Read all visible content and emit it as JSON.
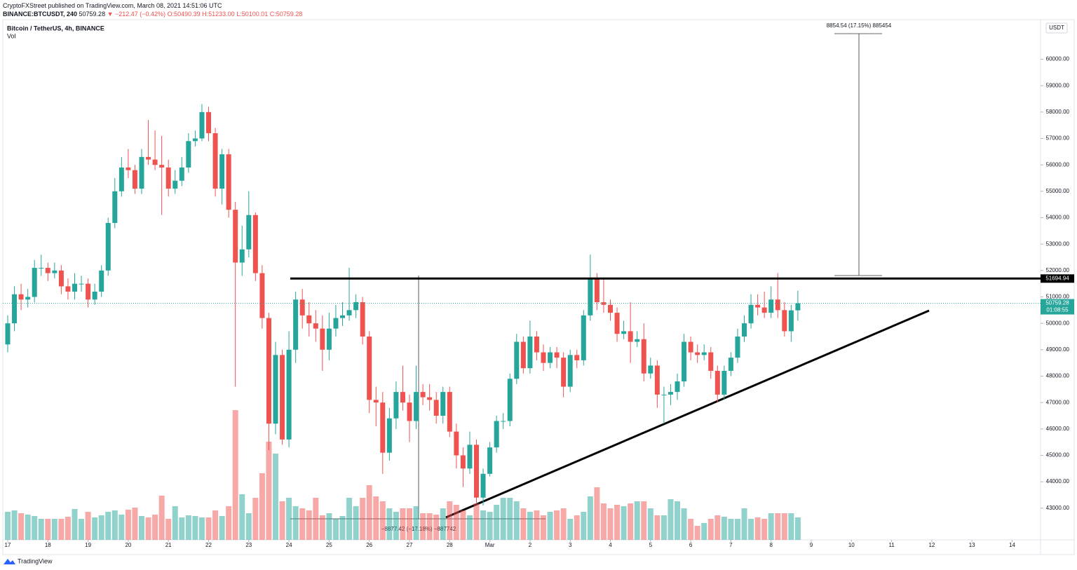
{
  "header": {
    "publisher": "CryptoFXStreet published on TradingView.com, March 08, 2021 14:51:06 UTC",
    "symbol": "BINANCE:BTCUSDT, 240",
    "last": "50759.28",
    "change": "▼ −212.47 (−0.42%)",
    "o": "O:50490.39",
    "h": "H:51233.00",
    "l": "L:50100.01",
    "c": "C:50759.28"
  },
  "footer": "TradingView",
  "chart_data": {
    "type": "candlestick",
    "title": "Bitcoin / TetherUS, 4h, BINANCE",
    "volume_label": "Vol",
    "currency": "USDT",
    "up_color": "#26a69a",
    "down_color": "#ef5350",
    "ylim": [
      41800,
      61500
    ],
    "yticks": [
      {
        "value": 43000,
        "label": "43000.00"
      },
      {
        "value": 44000,
        "label": "44000.00"
      },
      {
        "value": 45000,
        "label": "45000.00"
      },
      {
        "value": 46000,
        "label": "46000.00"
      },
      {
        "value": 47000,
        "label": "47000.00"
      },
      {
        "value": 48000,
        "label": "48000.00"
      },
      {
        "value": 49000,
        "label": "49000.00"
      },
      {
        "value": 50000,
        "label": "50000.00"
      },
      {
        "value": 51000,
        "label": "51000.00"
      },
      {
        "value": 52000,
        "label": "52000.00"
      },
      {
        "value": 53000,
        "label": "53000.00"
      },
      {
        "value": 54000,
        "label": "54000.00"
      },
      {
        "value": 55000,
        "label": "55000.00"
      },
      {
        "value": 56000,
        "label": "56000.00"
      },
      {
        "value": 57000,
        "label": "57000.00"
      },
      {
        "value": 58000,
        "label": "58000.00"
      },
      {
        "value": 59000,
        "label": "59000.00"
      },
      {
        "value": 60000,
        "label": "60000.00"
      }
    ],
    "xtick_labels": [
      "17",
      "18",
      "19",
      "20",
      "21",
      "22",
      "23",
      "24",
      "25",
      "26",
      "27",
      "28",
      "Mar",
      "2",
      "3",
      "4",
      "5",
      "6",
      "7",
      "8",
      "9",
      "10",
      "11",
      "12",
      "13",
      "14"
    ],
    "resistance": 51694.94,
    "last_price": 50759.28,
    "countdown": "01:08:55",
    "annotations": [
      "8854.54 (17.15%) 885454",
      "−8877.42 (−17.18%) −887742"
    ],
    "candles": [
      [
        49200,
        50300,
        48900,
        50000
      ],
      [
        50000,
        51400,
        49700,
        51100
      ],
      [
        51100,
        51500,
        50500,
        50900
      ],
      [
        50900,
        51300,
        50600,
        51000
      ],
      [
        51000,
        52400,
        50800,
        52100
      ],
      [
        52100,
        52600,
        51800,
        52100
      ],
      [
        52100,
        52300,
        51600,
        51900
      ],
      [
        51900,
        52300,
        51700,
        52000
      ],
      [
        52000,
        52200,
        51100,
        51400
      ],
      [
        51400,
        51700,
        50900,
        51200
      ],
      [
        51200,
        51900,
        50900,
        51500
      ],
      [
        51500,
        51800,
        51200,
        51500
      ],
      [
        51500,
        51700,
        50600,
        50900
      ],
      [
        50900,
        51500,
        50700,
        51200
      ],
      [
        51200,
        52200,
        51000,
        52000
      ],
      [
        52000,
        54000,
        51800,
        53800
      ],
      [
        53800,
        55500,
        53600,
        55000
      ],
      [
        55000,
        56300,
        54800,
        55900
      ],
      [
        55900,
        56600,
        55500,
        55800
      ],
      [
        55800,
        56000,
        54900,
        55100
      ],
      [
        55100,
        56600,
        54900,
        56300
      ],
      [
        56300,
        57700,
        56000,
        56200
      ],
      [
        56200,
        57300,
        55800,
        56000
      ],
      [
        56000,
        57100,
        54100,
        55900
      ],
      [
        55900,
        56200,
        54800,
        55100
      ],
      [
        55100,
        55800,
        54900,
        55400
      ],
      [
        55400,
        56300,
        55200,
        55900
      ],
      [
        55900,
        57200,
        55700,
        56900
      ],
      [
        56900,
        57300,
        56700,
        57000
      ],
      [
        57000,
        58300,
        56900,
        58000
      ],
      [
        58000,
        58200,
        56900,
        57200
      ],
      [
        57200,
        57400,
        54800,
        55100
      ],
      [
        55100,
        56600,
        54500,
        56400
      ],
      [
        56400,
        56600,
        54000,
        54300
      ],
      [
        54300,
        54600,
        47600,
        52300
      ],
      [
        52300,
        53700,
        51800,
        52800
      ],
      [
        52800,
        55000,
        52500,
        54100
      ],
      [
        54100,
        54200,
        51600,
        51900
      ],
      [
        51900,
        52200,
        49800,
        50200
      ],
      [
        50200,
        50400,
        45200,
        46200
      ],
      [
        46200,
        49300,
        45800,
        48800
      ],
      [
        48800,
        49000,
        45400,
        45600
      ],
      [
        45600,
        49700,
        45300,
        49000
      ],
      [
        49000,
        51200,
        48500,
        50900
      ],
      [
        50900,
        51300,
        49800,
        50300
      ],
      [
        50300,
        50800,
        49500,
        50000
      ],
      [
        50000,
        50500,
        49300,
        49800
      ],
      [
        49800,
        50300,
        48200,
        49000
      ],
      [
        49000,
        50400,
        48600,
        49800
      ],
      [
        49800,
        50700,
        49500,
        50200
      ],
      [
        50200,
        50800,
        49900,
        50300
      ],
      [
        50300,
        52100,
        50100,
        50500
      ],
      [
        50500,
        51100,
        50200,
        50800
      ],
      [
        50800,
        51000,
        49200,
        49500
      ],
      [
        49500,
        49700,
        46600,
        47100
      ],
      [
        47100,
        47600,
        46100,
        47000
      ],
      [
        47000,
        47400,
        44300,
        45100
      ],
      [
        45100,
        46800,
        44800,
        46400
      ],
      [
        46400,
        47800,
        46000,
        47400
      ],
      [
        47400,
        48400,
        46700,
        47000
      ],
      [
        47000,
        47300,
        45500,
        46300
      ],
      [
        46300,
        48400,
        46000,
        47400
      ],
      [
        47400,
        47700,
        46900,
        47200
      ],
      [
        47200,
        47700,
        46700,
        47100
      ],
      [
        47100,
        47400,
        46200,
        46500
      ],
      [
        46500,
        47600,
        46200,
        47400
      ],
      [
        47400,
        47600,
        45700,
        45900
      ],
      [
        45900,
        46200,
        44500,
        45000
      ],
      [
        45000,
        45300,
        43800,
        44500
      ],
      [
        44500,
        45900,
        44300,
        45400
      ],
      [
        45400,
        45600,
        43200,
        43400
      ],
      [
        43400,
        44500,
        43100,
        44300
      ],
      [
        44300,
        45500,
        44200,
        45300
      ],
      [
        45300,
        46500,
        45100,
        46300
      ],
      [
        46300,
        46600,
        46000,
        46300
      ],
      [
        46300,
        48100,
        46100,
        47900
      ],
      [
        47900,
        49600,
        47700,
        49300
      ],
      [
        49300,
        49500,
        48100,
        48300
      ],
      [
        48300,
        50100,
        48100,
        49500
      ],
      [
        49500,
        49700,
        48600,
        48900
      ],
      [
        48900,
        49200,
        48200,
        48500
      ],
      [
        48500,
        49100,
        48300,
        48900
      ],
      [
        48900,
        49100,
        48300,
        48700
      ],
      [
        48700,
        48900,
        47200,
        47600
      ],
      [
        47600,
        49000,
        47400,
        48800
      ],
      [
        48800,
        49000,
        48300,
        48600
      ],
      [
        48600,
        50500,
        48400,
        50300
      ],
      [
        50300,
        52600,
        50100,
        51700
      ],
      [
        51700,
        51900,
        50500,
        50800
      ],
      [
        50800,
        51700,
        50400,
        50700
      ],
      [
        50700,
        50900,
        50100,
        50400
      ],
      [
        50400,
        50600,
        49300,
        49600
      ],
      [
        49600,
        50100,
        49400,
        49700
      ],
      [
        49700,
        50800,
        48500,
        49300
      ],
      [
        49300,
        49700,
        49100,
        49400
      ],
      [
        49400,
        50000,
        47800,
        48100
      ],
      [
        48100,
        48700,
        47900,
        48400
      ],
      [
        48400,
        48600,
        46800,
        47300
      ],
      [
        47300,
        47600,
        46200,
        47300
      ],
      [
        47300,
        47700,
        46900,
        47400
      ],
      [
        47400,
        48100,
        47100,
        47800
      ],
      [
        47800,
        49600,
        47600,
        49300
      ],
      [
        49300,
        49500,
        48600,
        48900
      ],
      [
        48900,
        49200,
        48500,
        48800
      ],
      [
        48800,
        49200,
        48600,
        48900
      ],
      [
        48900,
        49100,
        47900,
        48200
      ],
      [
        48200,
        48400,
        47000,
        47300
      ],
      [
        47300,
        48400,
        47100,
        48200
      ],
      [
        48200,
        48900,
        48000,
        48700
      ],
      [
        48700,
        49800,
        48500,
        49500
      ],
      [
        49500,
        50300,
        49300,
        50000
      ],
      [
        50000,
        51100,
        49800,
        50700
      ],
      [
        50700,
        51100,
        50300,
        50600
      ],
      [
        50600,
        51200,
        50200,
        50400
      ],
      [
        50400,
        51400,
        50200,
        50900
      ],
      [
        50900,
        51900,
        50200,
        50500
      ],
      [
        50500,
        50800,
        49500,
        49700
      ],
      [
        49700,
        50700,
        49300,
        50490.39
      ],
      [
        50490.39,
        51233,
        50100.01,
        50759.28
      ]
    ],
    "volume": [
      40,
      42,
      38,
      36,
      34,
      30,
      30,
      30,
      30,
      33,
      44,
      30,
      40,
      32,
      35,
      40,
      42,
      36,
      43,
      46,
      34,
      32,
      36,
      63,
      30,
      48,
      32,
      35,
      34,
      32,
      32,
      42,
      34,
      48,
      185,
      65,
      38,
      60,
      95,
      140,
      123,
      55,
      60,
      48,
      45,
      42,
      60,
      35,
      38,
      30,
      34,
      60,
      48,
      60,
      78,
      62,
      55,
      45,
      40,
      45,
      45,
      48,
      38,
      38,
      36,
      45,
      55,
      50,
      42,
      35,
      52,
      42,
      40,
      50,
      60,
      60,
      55,
      45,
      40,
      42,
      35,
      40,
      42,
      45,
      30,
      35,
      40,
      62,
      75,
      52,
      45,
      50,
      48,
      52,
      55,
      55,
      45,
      35,
      35,
      58,
      55,
      45,
      30,
      20,
      24,
      30,
      35,
      33,
      30,
      30,
      45,
      30,
      32,
      30,
      38,
      38,
      38,
      38,
      32
    ]
  }
}
